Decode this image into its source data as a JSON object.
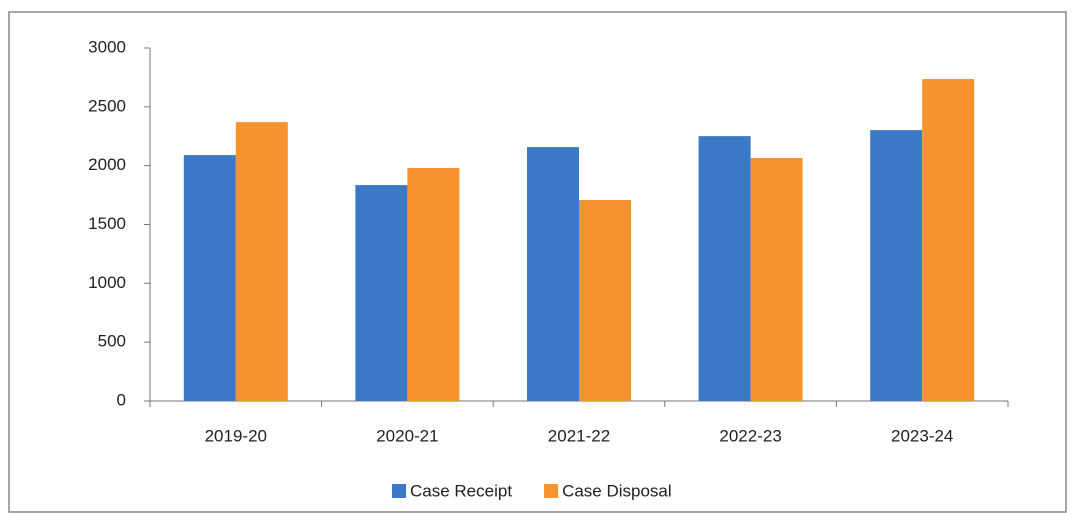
{
  "chart_data": {
    "type": "bar",
    "categories": [
      "2019-20",
      "2020-21",
      "2021-22",
      "2022-23",
      "2023-24"
    ],
    "series": [
      {
        "name": "Case Receipt",
        "color": "#3b78c6",
        "values": [
          2090,
          1835,
          2158,
          2251,
          2302
        ]
      },
      {
        "name": "Case Disposal",
        "color": "#f7922e",
        "values": [
          2370,
          1980,
          1708,
          2065,
          2736
        ]
      }
    ],
    "ylim": [
      0,
      3000
    ],
    "yticks": [
      0,
      500,
      1000,
      1500,
      2000,
      2500,
      3000
    ],
    "legend": "bottom"
  }
}
